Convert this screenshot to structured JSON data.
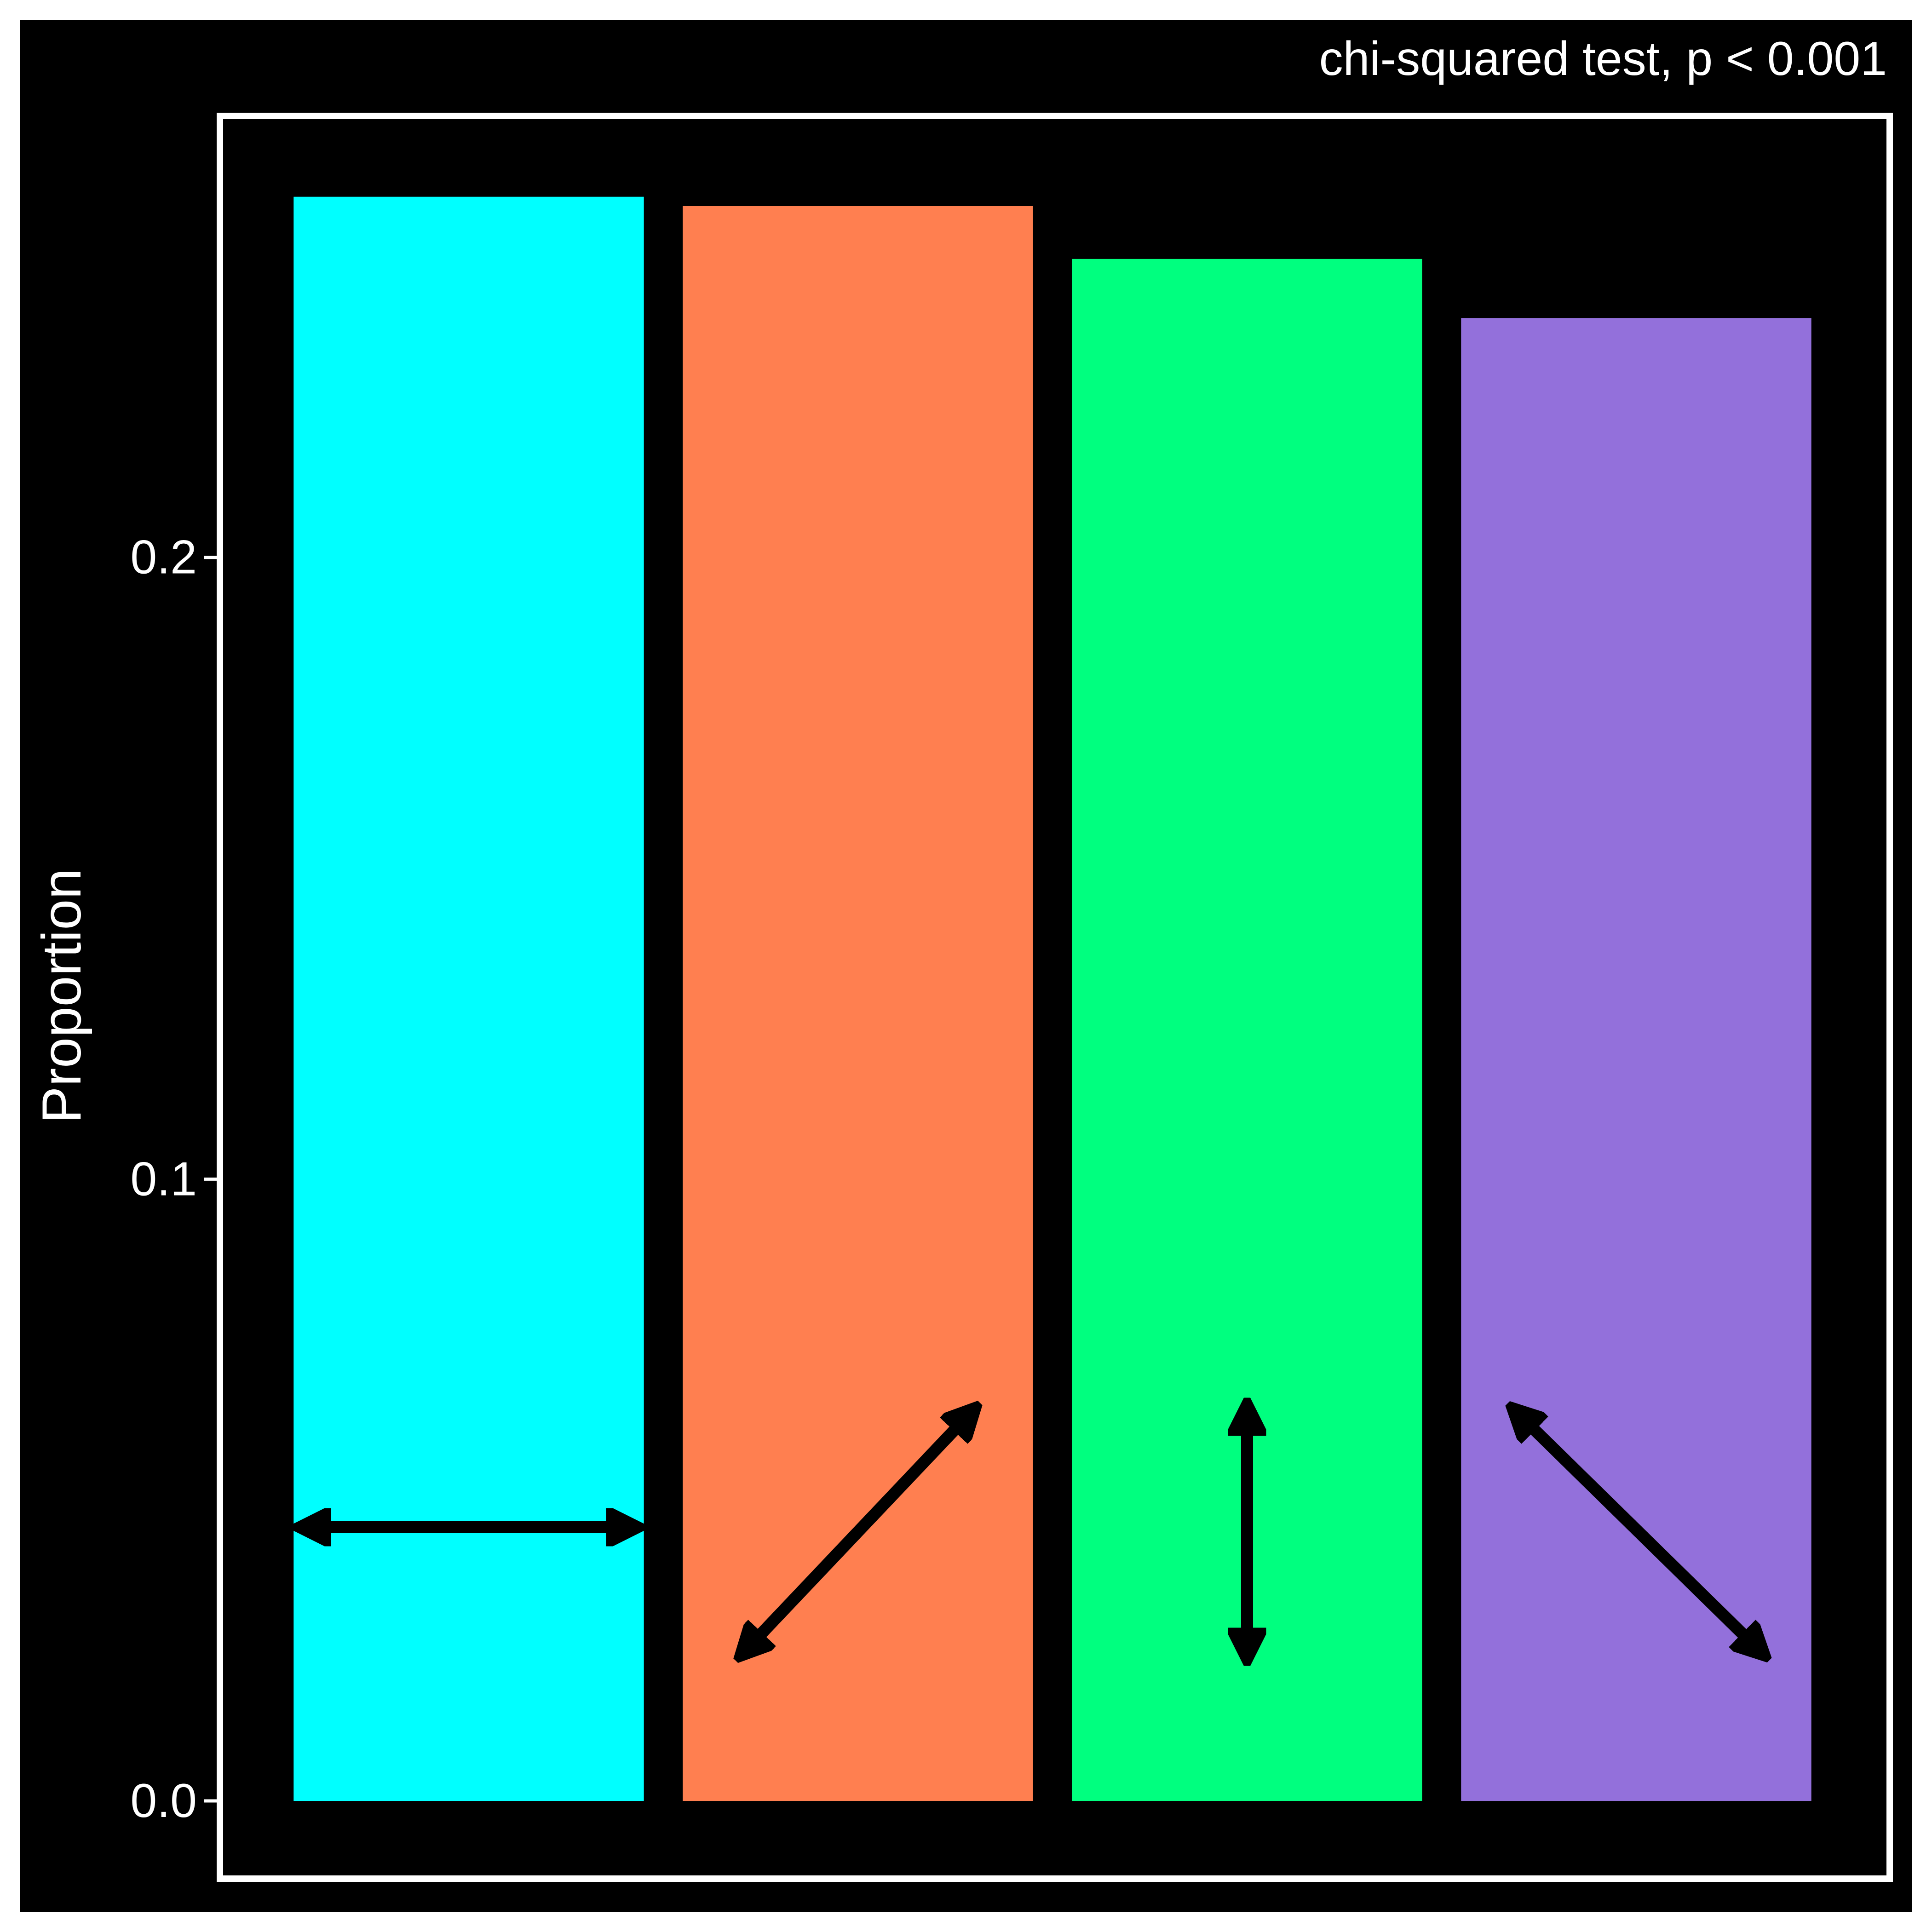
{
  "chart_data": {
    "type": "bar",
    "subtitle": "chi-squared test, p < 0.001",
    "ylabel": "Proportion",
    "xlabel": "",
    "categories": [
      "",
      "",
      "",
      ""
    ],
    "values": [
      0.258,
      0.2565,
      0.248,
      0.2385
    ],
    "ylim": [
      -0.0125,
      0.271
    ],
    "yticks": [
      0.0,
      0.1,
      0.2
    ],
    "ytick_labels": [
      "0.0",
      "0.1",
      "0.2"
    ],
    "grid": false,
    "legend": "none",
    "colors": {
      "background": "#000000",
      "panel_border": "#ffffff",
      "text": "#ffffff",
      "bars": [
        "#00ffff",
        "#ff7f50",
        "#00ff7f",
        "#9370db"
      ],
      "arrow": "#000000"
    },
    "bar_icons": [
      "horizontal-double-arrow-icon",
      "diagonal-up-double-arrow-icon",
      "vertical-double-arrow-icon",
      "diagonal-down-double-arrow-icon"
    ]
  }
}
